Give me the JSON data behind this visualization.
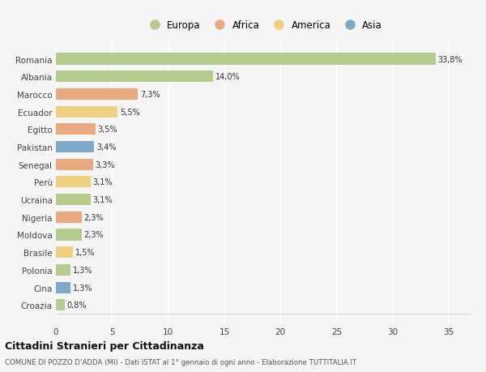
{
  "countries": [
    "Romania",
    "Albania",
    "Marocco",
    "Ecuador",
    "Egitto",
    "Pakistan",
    "Senegal",
    "Perù",
    "Ucraina",
    "Nigeria",
    "Moldova",
    "Brasile",
    "Polonia",
    "Cina",
    "Croazia"
  ],
  "values": [
    33.8,
    14.0,
    7.3,
    5.5,
    3.5,
    3.4,
    3.3,
    3.1,
    3.1,
    2.3,
    2.3,
    1.5,
    1.3,
    1.3,
    0.8
  ],
  "labels": [
    "33,8%",
    "14,0%",
    "7,3%",
    "5,5%",
    "3,5%",
    "3,4%",
    "3,3%",
    "3,1%",
    "3,1%",
    "2,3%",
    "2,3%",
    "1,5%",
    "1,3%",
    "1,3%",
    "0,8%"
  ],
  "continent": [
    "Europa",
    "Europa",
    "Africa",
    "America",
    "Africa",
    "Asia",
    "Africa",
    "America",
    "Europa",
    "Africa",
    "Europa",
    "America",
    "Europa",
    "Asia",
    "Europa"
  ],
  "colors": {
    "Europa": "#b5cc8e",
    "Africa": "#e8aa7e",
    "America": "#f0d080",
    "Asia": "#7ea8c8"
  },
  "legend_labels": [
    "Europa",
    "Africa",
    "America",
    "Asia"
  ],
  "legend_colors": [
    "#b5cc8e",
    "#e8aa7e",
    "#f0d080",
    "#7ea8c8"
  ],
  "title": "Cittadini Stranieri per Cittadinanza",
  "subtitle": "COMUNE DI POZZO D'ADDA (MI) - Dati ISTAT al 1° gennaio di ogni anno - Elaborazione TUTTITALIA.IT",
  "xlim": [
    0,
    37
  ],
  "xticks": [
    0,
    5,
    10,
    15,
    20,
    25,
    30,
    35
  ],
  "background_color": "#f5f5f5",
  "grid_color": "#ffffff",
  "bar_height": 0.65
}
